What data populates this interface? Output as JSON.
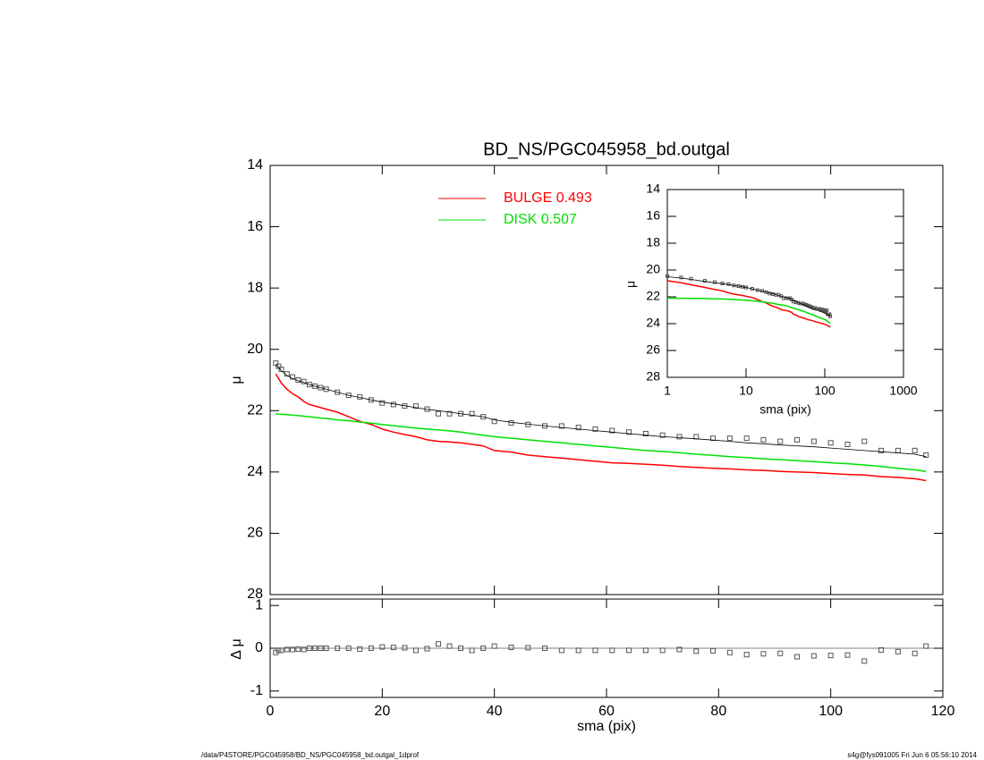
{
  "chart_data": [
    {
      "type": "line",
      "title": "BD_NS/PGC045958_bd.outgal",
      "ylabel": "μ",
      "xlim": [
        0,
        120
      ],
      "ylim": [
        28,
        14
      ],
      "yticks": [
        14,
        16,
        18,
        20,
        22,
        24,
        26,
        28
      ],
      "x": [
        1,
        1.5,
        2,
        3,
        4,
        5,
        6,
        7,
        8,
        9,
        10,
        12,
        14,
        16,
        18,
        20,
        22,
        24,
        26,
        28,
        30,
        32,
        34,
        36,
        38,
        40,
        43,
        46,
        49,
        52,
        55,
        58,
        61,
        64,
        67,
        70,
        73,
        76,
        79,
        82,
        85,
        88,
        91,
        94,
        97,
        100,
        103,
        106,
        109,
        112,
        115,
        117
      ],
      "series": [
        {
          "color": "#555555",
          "marker": "square",
          "values": [
            20.45,
            20.55,
            20.65,
            20.8,
            20.9,
            21.0,
            21.05,
            21.15,
            21.2,
            21.25,
            21.3,
            21.4,
            21.5,
            21.55,
            21.65,
            21.75,
            21.8,
            21.85,
            21.85,
            21.95,
            22.1,
            22.1,
            22.1,
            22.1,
            22.2,
            22.35,
            22.4,
            22.45,
            22.5,
            22.5,
            22.55,
            22.6,
            22.65,
            22.7,
            22.75,
            22.8,
            22.85,
            22.85,
            22.9,
            22.9,
            22.9,
            22.95,
            23.0,
            22.95,
            23.0,
            23.05,
            23.1,
            23.0,
            23.3,
            23.3,
            23.3,
            23.45
          ]
        },
        {
          "color": "#000000",
          "values": [
            20.5,
            20.6,
            20.7,
            20.85,
            20.95,
            21.02,
            21.08,
            21.15,
            21.2,
            21.25,
            21.3,
            21.4,
            21.5,
            21.57,
            21.65,
            21.72,
            21.78,
            21.84,
            21.9,
            21.96,
            22.0,
            22.05,
            22.1,
            22.15,
            22.2,
            22.3,
            22.38,
            22.44,
            22.5,
            22.55,
            22.6,
            22.65,
            22.7,
            22.75,
            22.8,
            22.85,
            22.88,
            22.92,
            22.96,
            23.0,
            23.05,
            23.08,
            23.12,
            23.15,
            23.18,
            23.22,
            23.26,
            23.3,
            23.34,
            23.38,
            23.42,
            23.5
          ]
        },
        {
          "name": "BULGE  0.493",
          "color": "#ff0000",
          "values": [
            20.8,
            20.95,
            21.1,
            21.3,
            21.45,
            21.55,
            21.7,
            21.8,
            21.85,
            21.9,
            21.95,
            22.05,
            22.2,
            22.35,
            22.45,
            22.6,
            22.7,
            22.78,
            22.85,
            22.95,
            23.0,
            23.02,
            23.05,
            23.1,
            23.15,
            23.3,
            23.35,
            23.45,
            23.5,
            23.55,
            23.6,
            23.65,
            23.7,
            23.72,
            23.75,
            23.78,
            23.82,
            23.85,
            23.88,
            23.9,
            23.93,
            23.95,
            23.98,
            24.0,
            24.02,
            24.05,
            24.08,
            24.1,
            24.15,
            24.18,
            24.22,
            24.28
          ]
        },
        {
          "name": "DISK  0.507",
          "color": "#00e000",
          "values": [
            22.1,
            22.11,
            22.12,
            22.13,
            22.15,
            22.16,
            22.18,
            22.2,
            22.22,
            22.24,
            22.25,
            22.3,
            22.33,
            22.37,
            22.41,
            22.45,
            22.49,
            22.53,
            22.57,
            22.6,
            22.63,
            22.66,
            22.7,
            22.75,
            22.8,
            22.85,
            22.9,
            22.95,
            23.0,
            23.05,
            23.1,
            23.15,
            23.2,
            23.25,
            23.3,
            23.33,
            23.37,
            23.42,
            23.46,
            23.5,
            23.53,
            23.57,
            23.6,
            23.63,
            23.66,
            23.7,
            23.73,
            23.77,
            23.82,
            23.88,
            23.93,
            23.98
          ]
        }
      ],
      "inset": {
        "log_x": true,
        "xlim": [
          1,
          1000
        ],
        "xticks": [
          1,
          10,
          100,
          1000
        ],
        "ylim": [
          28,
          14
        ],
        "yticks": [
          14,
          16,
          18,
          20,
          22,
          24,
          26,
          28
        ],
        "xlabel": "sma (pix)",
        "ylabel": "μ"
      }
    },
    {
      "type": "scatter",
      "ylabel": "Δ μ",
      "xlabel": "sma (pix)",
      "xlim": [
        0,
        120
      ],
      "xticks": [
        0,
        20,
        40,
        60,
        80,
        100,
        120
      ],
      "ylim": [
        -1.15,
        1.15
      ],
      "yticks": [
        -1,
        0,
        1
      ],
      "color": "#555555",
      "x": [
        1,
        1.5,
        2,
        3,
        4,
        5,
        6,
        7,
        8,
        9,
        10,
        12,
        14,
        16,
        18,
        20,
        22,
        24,
        26,
        28,
        30,
        32,
        34,
        36,
        38,
        40,
        43,
        46,
        49,
        52,
        55,
        58,
        61,
        64,
        67,
        70,
        73,
        76,
        79,
        82,
        85,
        88,
        91,
        94,
        97,
        100,
        103,
        106,
        109,
        112,
        115,
        117
      ],
      "values": [
        -0.1,
        -0.05,
        -0.05,
        -0.03,
        -0.03,
        -0.02,
        -0.03,
        0,
        0,
        0,
        0,
        0,
        0,
        -0.02,
        0,
        0.03,
        0.02,
        0.01,
        -0.05,
        -0.01,
        0.1,
        0.05,
        0,
        -0.05,
        0,
        0.05,
        0.02,
        0.01,
        0,
        -0.05,
        -0.05,
        -0.05,
        -0.05,
        -0.05,
        -0.05,
        -0.05,
        -0.03,
        -0.07,
        -0.06,
        -0.1,
        -0.15,
        -0.13,
        -0.12,
        -0.2,
        -0.18,
        -0.17,
        -0.16,
        -0.3,
        -0.04,
        -0.08,
        -0.12,
        0.05
      ]
    }
  ],
  "footer": {
    "left": "/data/P4STORE/PGC045958/BD_NS/PGC045958_bd.outgal_1dprof",
    "right": "s4g@fys091005  Fri Jun  6 05:56:10 2014"
  }
}
